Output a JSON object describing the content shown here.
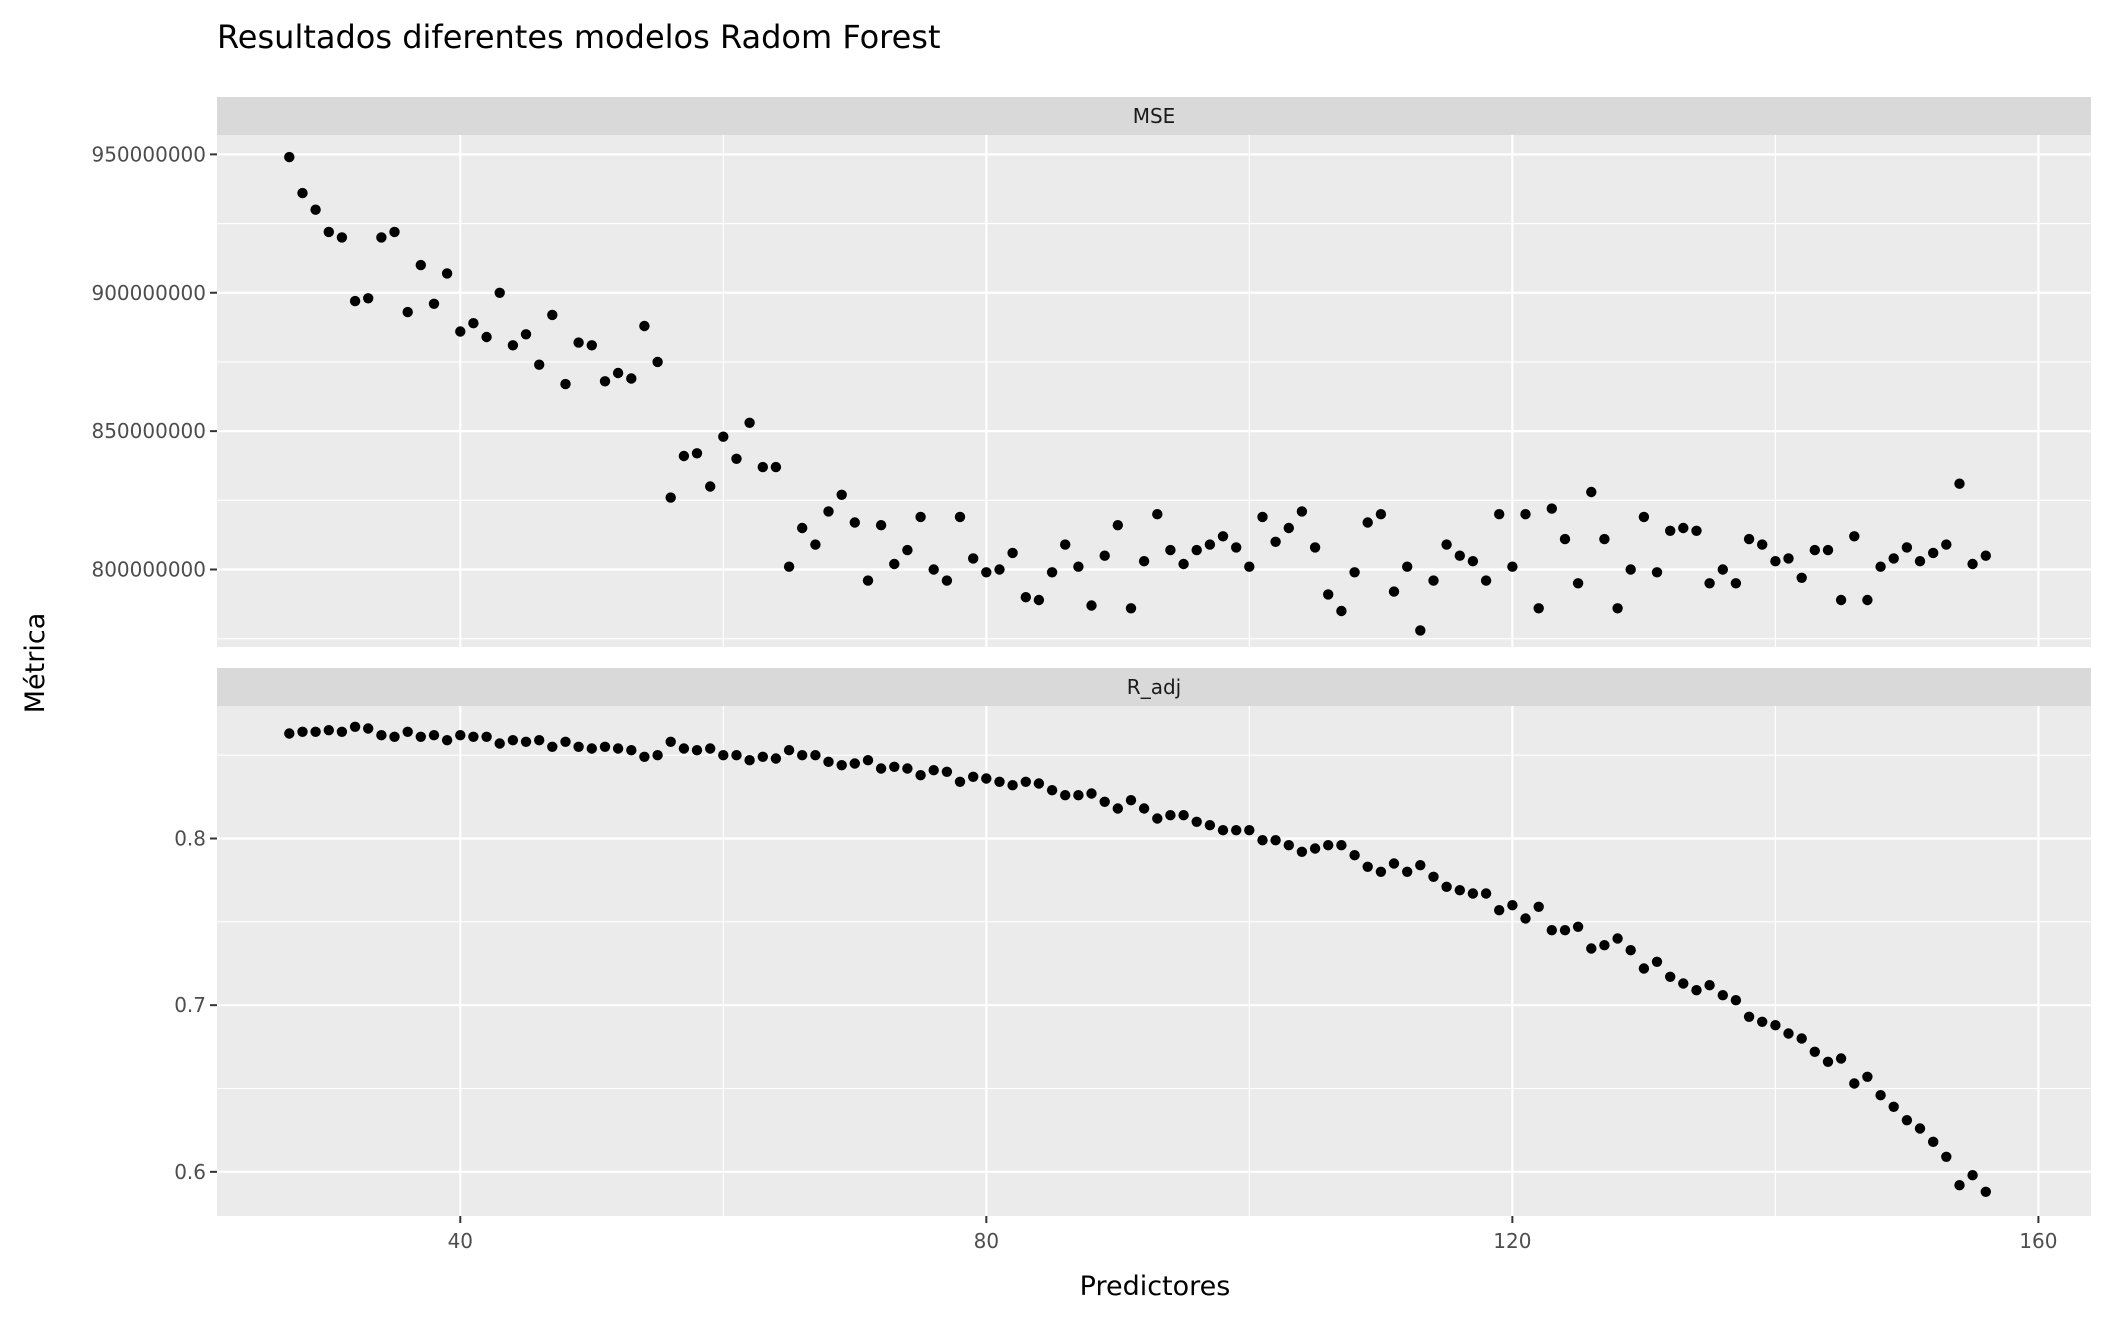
{
  "chart_data": {
    "type": "scatter",
    "title": "Resultados diferentes modelos Radom Forest",
    "xlabel": "Predictores",
    "ylabel": "Métrica",
    "xlim": [
      21.5,
      164
    ],
    "x_ticks": [
      40,
      80,
      120,
      160
    ],
    "x_tick_labels": [
      "40",
      "80",
      "120",
      "160"
    ],
    "grid": true,
    "facets": [
      {
        "label": "MSE",
        "ylim": [
          772000000,
          957000000
        ],
        "y_ticks": [
          800000000,
          850000000,
          900000000,
          950000000
        ],
        "y_tick_labels": [
          "800000000",
          "850000000",
          "900000000",
          "950000000"
        ],
        "points": [
          [
            27,
            949000000
          ],
          [
            28,
            936000000
          ],
          [
            29,
            930000000
          ],
          [
            30,
            922000000
          ],
          [
            31,
            920000000
          ],
          [
            32,
            897000000
          ],
          [
            33,
            898000000
          ],
          [
            34,
            920000000
          ],
          [
            35,
            922000000
          ],
          [
            36,
            893000000
          ],
          [
            37,
            910000000
          ],
          [
            38,
            896000000
          ],
          [
            39,
            907000000
          ],
          [
            40,
            886000000
          ],
          [
            41,
            889000000
          ],
          [
            42,
            884000000
          ],
          [
            43,
            900000000
          ],
          [
            44,
            881000000
          ],
          [
            45,
            885000000
          ],
          [
            46,
            874000000
          ],
          [
            47,
            892000000
          ],
          [
            48,
            867000000
          ],
          [
            49,
            882000000
          ],
          [
            50,
            881000000
          ],
          [
            51,
            868000000
          ],
          [
            52,
            871000000
          ],
          [
            53,
            869000000
          ],
          [
            54,
            888000000
          ],
          [
            55,
            875000000
          ],
          [
            56,
            826000000
          ],
          [
            57,
            841000000
          ],
          [
            58,
            842000000
          ],
          [
            59,
            830000000
          ],
          [
            60,
            848000000
          ],
          [
            61,
            840000000
          ],
          [
            62,
            853000000
          ],
          [
            63,
            837000000
          ],
          [
            64,
            837000000
          ],
          [
            65,
            801000000
          ],
          [
            66,
            815000000
          ],
          [
            67,
            809000000
          ],
          [
            68,
            821000000
          ],
          [
            69,
            827000000
          ],
          [
            70,
            817000000
          ],
          [
            71,
            796000000
          ],
          [
            72,
            816000000
          ],
          [
            73,
            802000000
          ],
          [
            74,
            807000000
          ],
          [
            75,
            819000000
          ],
          [
            76,
            800000000
          ],
          [
            77,
            796000000
          ],
          [
            78,
            819000000
          ],
          [
            79,
            804000000
          ],
          [
            80,
            799000000
          ],
          [
            81,
            800000000
          ],
          [
            82,
            806000000
          ],
          [
            83,
            790000000
          ],
          [
            84,
            789000000
          ],
          [
            85,
            799000000
          ],
          [
            86,
            809000000
          ],
          [
            87,
            801000000
          ],
          [
            88,
            787000000
          ],
          [
            89,
            805000000
          ],
          [
            90,
            816000000
          ],
          [
            91,
            786000000
          ],
          [
            92,
            803000000
          ],
          [
            93,
            820000000
          ],
          [
            94,
            807000000
          ],
          [
            95,
            802000000
          ],
          [
            96,
            807000000
          ],
          [
            97,
            809000000
          ],
          [
            98,
            812000000
          ],
          [
            99,
            808000000
          ],
          [
            100,
            801000000
          ],
          [
            101,
            819000000
          ],
          [
            102,
            810000000
          ],
          [
            103,
            815000000
          ],
          [
            104,
            821000000
          ],
          [
            105,
            808000000
          ],
          [
            106,
            791000000
          ],
          [
            107,
            785000000
          ],
          [
            108,
            799000000
          ],
          [
            109,
            817000000
          ],
          [
            110,
            820000000
          ],
          [
            111,
            792000000
          ],
          [
            112,
            801000000
          ],
          [
            113,
            778000000
          ],
          [
            114,
            796000000
          ],
          [
            115,
            809000000
          ],
          [
            116,
            805000000
          ],
          [
            117,
            803000000
          ],
          [
            118,
            796000000
          ],
          [
            119,
            820000000
          ],
          [
            120,
            801000000
          ],
          [
            121,
            820000000
          ],
          [
            122,
            786000000
          ],
          [
            123,
            822000000
          ],
          [
            124,
            811000000
          ],
          [
            125,
            795000000
          ],
          [
            126,
            828000000
          ],
          [
            127,
            811000000
          ],
          [
            128,
            786000000
          ],
          [
            129,
            800000000
          ],
          [
            130,
            819000000
          ],
          [
            131,
            799000000
          ],
          [
            132,
            814000000
          ],
          [
            133,
            815000000
          ],
          [
            134,
            814000000
          ],
          [
            135,
            795000000
          ],
          [
            136,
            800000000
          ],
          [
            137,
            795000000
          ],
          [
            138,
            811000000
          ],
          [
            139,
            809000000
          ],
          [
            140,
            803000000
          ],
          [
            141,
            804000000
          ],
          [
            142,
            797000000
          ],
          [
            143,
            807000000
          ],
          [
            144,
            807000000
          ],
          [
            145,
            789000000
          ],
          [
            146,
            812000000
          ],
          [
            147,
            789000000
          ],
          [
            148,
            801000000
          ],
          [
            149,
            804000000
          ],
          [
            150,
            808000000
          ],
          [
            151,
            803000000
          ],
          [
            152,
            806000000
          ],
          [
            153,
            809000000
          ],
          [
            154,
            831000000
          ],
          [
            155,
            802000000
          ],
          [
            156,
            805000000
          ]
        ]
      },
      {
        "label": "R_adj",
        "ylim": [
          0.5735,
          0.8795
        ],
        "y_ticks": [
          0.6,
          0.7,
          0.8
        ],
        "y_tick_labels": [
          "0.6",
          "0.7",
          "0.8"
        ],
        "points": [
          [
            27,
            0.863
          ],
          [
            28,
            0.864
          ],
          [
            29,
            0.864
          ],
          [
            30,
            0.865
          ],
          [
            31,
            0.864
          ],
          [
            32,
            0.867
          ],
          [
            33,
            0.866
          ],
          [
            34,
            0.862
          ],
          [
            35,
            0.861
          ],
          [
            36,
            0.864
          ],
          [
            37,
            0.861
          ],
          [
            38,
            0.862
          ],
          [
            39,
            0.859
          ],
          [
            40,
            0.862
          ],
          [
            41,
            0.861
          ],
          [
            42,
            0.861
          ],
          [
            43,
            0.857
          ],
          [
            44,
            0.859
          ],
          [
            45,
            0.858
          ],
          [
            46,
            0.859
          ],
          [
            47,
            0.855
          ],
          [
            48,
            0.858
          ],
          [
            49,
            0.855
          ],
          [
            50,
            0.854
          ],
          [
            51,
            0.855
          ],
          [
            52,
            0.854
          ],
          [
            53,
            0.853
          ],
          [
            54,
            0.849
          ],
          [
            55,
            0.85
          ],
          [
            56,
            0.858
          ],
          [
            57,
            0.854
          ],
          [
            58,
            0.853
          ],
          [
            59,
            0.854
          ],
          [
            60,
            0.85
          ],
          [
            61,
            0.85
          ],
          [
            62,
            0.847
          ],
          [
            63,
            0.849
          ],
          [
            64,
            0.848
          ],
          [
            65,
            0.853
          ],
          [
            66,
            0.85
          ],
          [
            67,
            0.85
          ],
          [
            68,
            0.846
          ],
          [
            69,
            0.844
          ],
          [
            70,
            0.845
          ],
          [
            71,
            0.847
          ],
          [
            72,
            0.842
          ],
          [
            73,
            0.843
          ],
          [
            74,
            0.842
          ],
          [
            75,
            0.838
          ],
          [
            76,
            0.841
          ],
          [
            77,
            0.84
          ],
          [
            78,
            0.834
          ],
          [
            79,
            0.837
          ],
          [
            80,
            0.836
          ],
          [
            81,
            0.834
          ],
          [
            82,
            0.832
          ],
          [
            83,
            0.834
          ],
          [
            84,
            0.833
          ],
          [
            85,
            0.829
          ],
          [
            86,
            0.826
          ],
          [
            87,
            0.826
          ],
          [
            88,
            0.827
          ],
          [
            89,
            0.822
          ],
          [
            90,
            0.818
          ],
          [
            91,
            0.823
          ],
          [
            92,
            0.818
          ],
          [
            93,
            0.812
          ],
          [
            94,
            0.814
          ],
          [
            95,
            0.814
          ],
          [
            96,
            0.81
          ],
          [
            97,
            0.808
          ],
          [
            98,
            0.805
          ],
          [
            99,
            0.805
          ],
          [
            100,
            0.805
          ],
          [
            101,
            0.799
          ],
          [
            102,
            0.799
          ],
          [
            103,
            0.796
          ],
          [
            104,
            0.792
          ],
          [
            105,
            0.794
          ],
          [
            106,
            0.796
          ],
          [
            107,
            0.796
          ],
          [
            108,
            0.79
          ],
          [
            109,
            0.783
          ],
          [
            110,
            0.78
          ],
          [
            111,
            0.785
          ],
          [
            112,
            0.78
          ],
          [
            113,
            0.784
          ],
          [
            114,
            0.777
          ],
          [
            115,
            0.771
          ],
          [
            116,
            0.769
          ],
          [
            117,
            0.767
          ],
          [
            118,
            0.767
          ],
          [
            119,
            0.757
          ],
          [
            120,
            0.76
          ],
          [
            121,
            0.752
          ],
          [
            122,
            0.759
          ],
          [
            123,
            0.745
          ],
          [
            124,
            0.745
          ],
          [
            125,
            0.747
          ],
          [
            126,
            0.734
          ],
          [
            127,
            0.736
          ],
          [
            128,
            0.74
          ],
          [
            129,
            0.733
          ],
          [
            130,
            0.722
          ],
          [
            131,
            0.726
          ],
          [
            132,
            0.717
          ],
          [
            133,
            0.713
          ],
          [
            134,
            0.709
          ],
          [
            135,
            0.712
          ],
          [
            136,
            0.706
          ],
          [
            137,
            0.703
          ],
          [
            138,
            0.693
          ],
          [
            139,
            0.69
          ],
          [
            140,
            0.688
          ],
          [
            141,
            0.683
          ],
          [
            142,
            0.68
          ],
          [
            143,
            0.672
          ],
          [
            144,
            0.666
          ],
          [
            145,
            0.668
          ],
          [
            146,
            0.653
          ],
          [
            147,
            0.657
          ],
          [
            148,
            0.646
          ],
          [
            149,
            0.639
          ],
          [
            150,
            0.631
          ],
          [
            151,
            0.626
          ],
          [
            152,
            0.618
          ],
          [
            153,
            0.609
          ],
          [
            154,
            0.592
          ],
          [
            155,
            0.598
          ],
          [
            156,
            0.588
          ]
        ]
      }
    ]
  }
}
